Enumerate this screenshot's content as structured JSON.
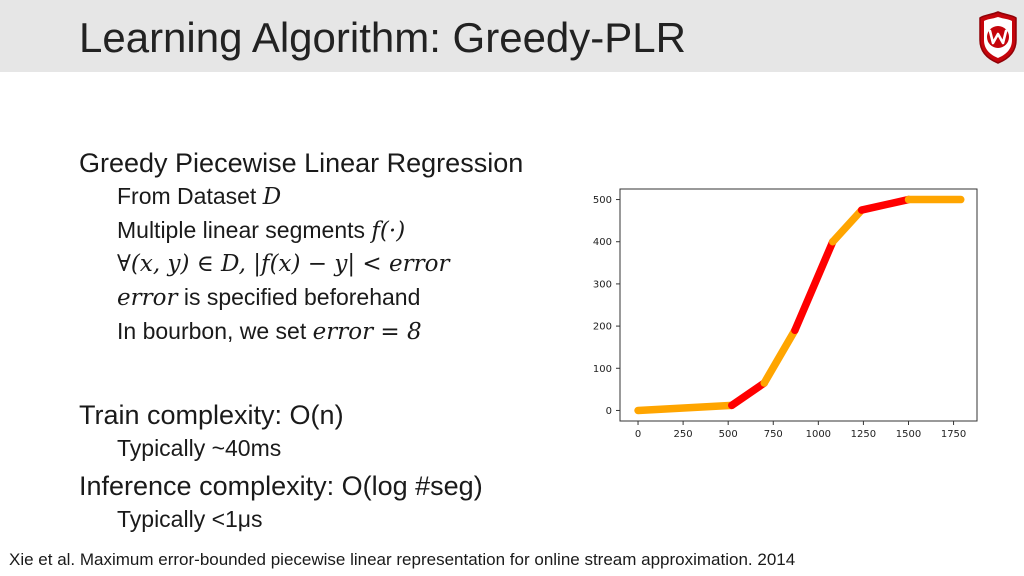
{
  "header": {
    "title": "Learning Algorithm: Greedy-PLR"
  },
  "body": {
    "heading": "Greedy Piecewise Linear Regression",
    "bullet_dataset_text": "From Dataset ",
    "bullet_dataset_math": "D",
    "bullet_segments_text": "Multiple linear segments ",
    "bullet_segments_math": "f(·)",
    "bullet_constraint_math": "∀(x, y) ∈ D, |f(x) − y| < error",
    "bullet_error_math": "error",
    "bullet_error_text": " is specified beforehand",
    "bullet_bourbon_text": "In bourbon, we set ",
    "bullet_bourbon_math": "error = 8",
    "train_complexity": "Train complexity: O(n)",
    "train_time": "Typically ~40ms",
    "inference_complexity": "Inference complexity: O(log #seg)",
    "inference_time": "Typically <1μs"
  },
  "footer": {
    "citation": "Xie et al. Maximum error-bounded piecewise linear representation for online stream approximation. 2014"
  },
  "chart_data": {
    "type": "line",
    "xlim": [
      -100,
      1880
    ],
    "ylim": [
      -25,
      525
    ],
    "xticks": [
      "0",
      "250",
      "500",
      "750",
      "1000",
      "1250",
      "1500",
      "1750"
    ],
    "yticks": [
      "0",
      "100",
      "200",
      "300",
      "400",
      "500"
    ],
    "grid": false,
    "segments": [
      {
        "x": [
          0,
          520
        ],
        "y": [
          0,
          12
        ],
        "color": "#ffa500"
      },
      {
        "x": [
          520,
          700
        ],
        "y": [
          12,
          65
        ],
        "color": "#ff0000"
      },
      {
        "x": [
          700,
          870
        ],
        "y": [
          65,
          190
        ],
        "color": "#ffa500"
      },
      {
        "x": [
          870,
          1080
        ],
        "y": [
          190,
          400
        ],
        "color": "#ff0000"
      },
      {
        "x": [
          1080,
          1240
        ],
        "y": [
          400,
          475
        ],
        "color": "#ffa500"
      },
      {
        "x": [
          1240,
          1500
        ],
        "y": [
          475,
          500
        ],
        "color": "#ff0000"
      },
      {
        "x": [
          1500,
          1790
        ],
        "y": [
          500,
          500
        ],
        "color": "#ffa500"
      }
    ]
  }
}
